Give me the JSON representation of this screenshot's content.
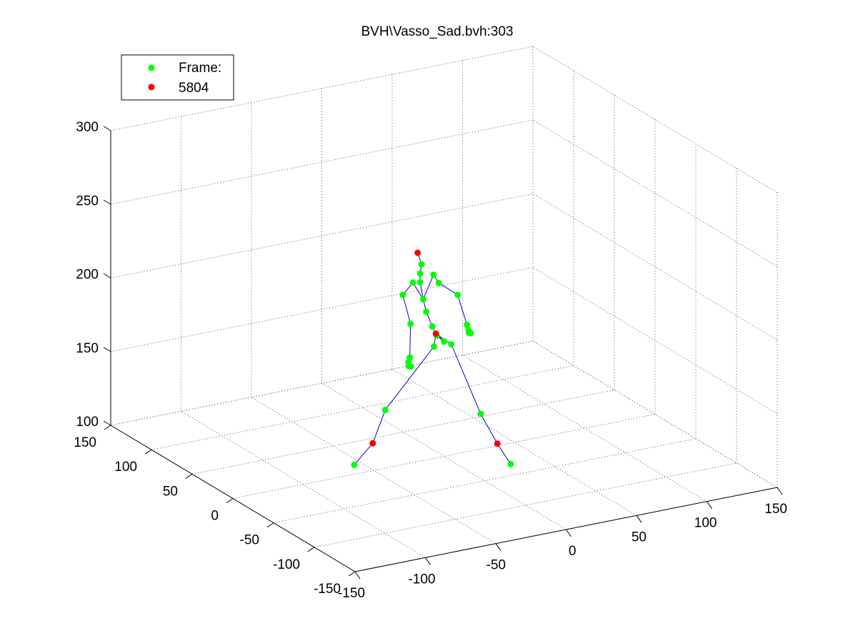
{
  "chart_data": {
    "type": "scatter",
    "dimensions": 3,
    "title": "BVH\\Vasso_Sad.bvh:303",
    "xlabel": "",
    "ylabel": "",
    "zlabel": "",
    "xlim": [
      -150,
      150
    ],
    "ylim": [
      -150,
      150
    ],
    "zlim": [
      100,
      300
    ],
    "x_ticks": [
      -150,
      -100,
      -50,
      0,
      50,
      100,
      150
    ],
    "y_ticks": [
      -150,
      -100,
      -50,
      0,
      50,
      100,
      150
    ],
    "z_ticks": [
      100,
      150,
      200,
      250,
      300
    ],
    "grid": true,
    "legend_position": "top-left",
    "legend": [
      {
        "label": "Frame:",
        "color": "#00ff00"
      },
      {
        "label": "5804",
        "color": "#ff0000"
      }
    ],
    "line_color": "#0000cc",
    "series": [
      {
        "name": "Frame:",
        "color": "#00ff00",
        "points": [
          {
            "id": "hip",
            "x": 0,
            "y": 0,
            "z": 178
          },
          {
            "id": "spine1",
            "x": -4,
            "y": 2,
            "z": 182
          },
          {
            "id": "spine2",
            "x": -6,
            "y": 4,
            "z": 188
          },
          {
            "id": "chest",
            "x": -8,
            "y": 8,
            "z": 197
          },
          {
            "id": "chest2",
            "x": -9,
            "y": 10,
            "z": 205
          },
          {
            "id": "neck",
            "x": -10,
            "y": 12,
            "z": 216
          },
          {
            "id": "neck2",
            "x": -10,
            "y": 12,
            "z": 222
          },
          {
            "id": "head_base",
            "x": -9,
            "y": 12,
            "z": 228
          },
          {
            "id": "lclav",
            "x": -4,
            "y": 6,
            "z": 222
          },
          {
            "id": "lshoulder",
            "x": 2,
            "y": 10,
            "z": 214
          },
          {
            "id": "lelbow",
            "x": 12,
            "y": 4,
            "z": 206
          },
          {
            "id": "lwrist",
            "x": 14,
            "y": -4,
            "z": 188
          },
          {
            "id": "lhand",
            "x": 14,
            "y": -6,
            "z": 185
          },
          {
            "id": "lfinger1",
            "x": 13,
            "y": -8,
            "z": 184
          },
          {
            "id": "lfinger2",
            "x": 15,
            "y": -7,
            "z": 183
          },
          {
            "id": "rclav",
            "x": -14,
            "y": 14,
            "z": 216
          },
          {
            "id": "rshoulder",
            "x": -20,
            "y": 16,
            "z": 208
          },
          {
            "id": "relbow",
            "x": -18,
            "y": 10,
            "z": 190
          },
          {
            "id": "rwrist",
            "x": -22,
            "y": 4,
            "z": 170
          },
          {
            "id": "rhand",
            "x": -24,
            "y": 2,
            "z": 168
          },
          {
            "id": "rfinger1",
            "x": -25,
            "y": 0,
            "z": 166
          },
          {
            "id": "rfinger2",
            "x": -23,
            "y": 1,
            "z": 165
          },
          {
            "id": "lhip",
            "x": 4,
            "y": -2,
            "z": 176
          },
          {
            "id": "lknee",
            "x": 18,
            "y": -14,
            "z": 130
          },
          {
            "id": "ltoe",
            "x": 30,
            "y": -30,
            "z": 99
          },
          {
            "id": "rhip",
            "x": -6,
            "y": 2,
            "z": 175
          },
          {
            "id": "rknee",
            "x": -36,
            "y": 10,
            "z": 135
          },
          {
            "id": "rtoe",
            "x": -58,
            "y": 10,
            "z": 102
          }
        ]
      },
      {
        "name": "5804",
        "color": "#ff0000",
        "points": [
          {
            "id": "head_top",
            "x": -6,
            "y": 22,
            "z": 232
          },
          {
            "id": "root",
            "x": -4,
            "y": 3,
            "z": 183
          },
          {
            "id": "lankle",
            "x": 24,
            "y": -24,
            "z": 112
          },
          {
            "id": "rankle",
            "x": -46,
            "y": 8,
            "z": 115
          }
        ]
      }
    ],
    "bones": [
      [
        "root",
        "hip"
      ],
      [
        "hip",
        "spine1"
      ],
      [
        "spine1",
        "spine2"
      ],
      [
        "spine2",
        "chest"
      ],
      [
        "chest",
        "chest2"
      ],
      [
        "chest2",
        "neck"
      ],
      [
        "neck",
        "neck2"
      ],
      [
        "neck2",
        "head_base"
      ],
      [
        "head_base",
        "head_top"
      ],
      [
        "chest2",
        "lclav"
      ],
      [
        "lclav",
        "lshoulder"
      ],
      [
        "lshoulder",
        "lelbow"
      ],
      [
        "lelbow",
        "lwrist"
      ],
      [
        "lwrist",
        "lhand"
      ],
      [
        "lhand",
        "lfinger1"
      ],
      [
        "lhand",
        "lfinger2"
      ],
      [
        "chest2",
        "rclav"
      ],
      [
        "rclav",
        "rshoulder"
      ],
      [
        "rshoulder",
        "relbow"
      ],
      [
        "relbow",
        "rwrist"
      ],
      [
        "rwrist",
        "rhand"
      ],
      [
        "rhand",
        "rfinger1"
      ],
      [
        "rhand",
        "rfinger2"
      ],
      [
        "root",
        "lhip"
      ],
      [
        "lhip",
        "lknee"
      ],
      [
        "lknee",
        "lankle"
      ],
      [
        "lankle",
        "ltoe"
      ],
      [
        "root",
        "rhip"
      ],
      [
        "rhip",
        "rknee"
      ],
      [
        "rknee",
        "rankle"
      ],
      [
        "rankle",
        "rtoe"
      ]
    ]
  }
}
